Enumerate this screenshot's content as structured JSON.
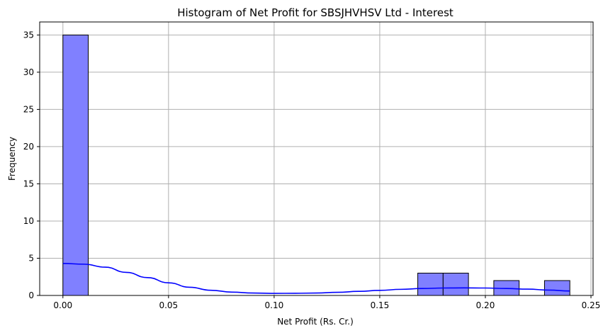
{
  "chart_data": {
    "type": "bar",
    "title": "Histogram of Net Profit for SBSJHVHSV Ltd - Interest",
    "xlabel": "Net Profit (Rs. Cr.)",
    "ylabel": "Frequency",
    "xlim": [
      -0.011,
      0.251
    ],
    "ylim": [
      0,
      36.75
    ],
    "xticks": [
      0.0,
      0.05,
      0.1,
      0.15,
      0.2,
      0.25
    ],
    "xtick_labels": [
      "0.00",
      "0.05",
      "0.10",
      "0.15",
      "0.20",
      "0.25"
    ],
    "yticks": [
      0,
      5,
      10,
      15,
      20,
      25,
      30,
      35
    ],
    "ytick_labels": [
      "0",
      "5",
      "10",
      "15",
      "20",
      "25",
      "30",
      "35"
    ],
    "grid": true,
    "bin_width": 0.012,
    "bins": [
      {
        "start": 0.0,
        "end": 0.012,
        "count": 35
      },
      {
        "start": 0.168,
        "end": 0.18,
        "count": 3
      },
      {
        "start": 0.18,
        "end": 0.192,
        "count": 3
      },
      {
        "start": 0.204,
        "end": 0.216,
        "count": 2
      },
      {
        "start": 0.228,
        "end": 0.24,
        "count": 2
      }
    ],
    "kde": {
      "x": [
        0.0,
        0.01,
        0.02,
        0.03,
        0.04,
        0.05,
        0.06,
        0.07,
        0.08,
        0.09,
        0.1,
        0.11,
        0.12,
        0.13,
        0.14,
        0.15,
        0.16,
        0.17,
        0.18,
        0.19,
        0.2,
        0.21,
        0.22,
        0.23,
        0.24
      ],
      "y": [
        4.3,
        4.2,
        3.8,
        3.1,
        2.4,
        1.7,
        1.1,
        0.7,
        0.45,
        0.33,
        0.28,
        0.29,
        0.33,
        0.42,
        0.55,
        0.68,
        0.82,
        0.93,
        1.0,
        1.02,
        1.0,
        0.93,
        0.85,
        0.72,
        0.6
      ]
    },
    "colors": {
      "bar_fill": "#8080ff",
      "bar_edge": "#000000",
      "kde_line": "#0000ff",
      "grid": "#b0b0b0"
    }
  }
}
